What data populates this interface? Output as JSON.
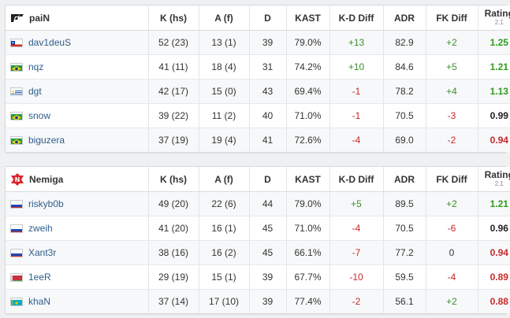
{
  "columns": {
    "kills": "K (hs)",
    "assists": "A (f)",
    "deaths": "D",
    "kast": "KAST",
    "kd_diff": "K-D Diff",
    "adr": "ADR",
    "fk_diff": "FK Diff",
    "rating": "Rating",
    "rating_version": "2.1"
  },
  "teams": [
    {
      "name": "paiN",
      "players": [
        {
          "name": "dav1deuS",
          "flag": "chile",
          "k": "52 (23)",
          "a": "13 (1)",
          "d": "39",
          "kast": "79.0%",
          "kd": "+13",
          "adr": "82.9",
          "fk": "+2",
          "rating": "1.25"
        },
        {
          "name": "nqz",
          "flag": "brazil",
          "k": "41 (11)",
          "a": "18 (4)",
          "d": "31",
          "kast": "74.2%",
          "kd": "+10",
          "adr": "84.6",
          "fk": "+5",
          "rating": "1.21"
        },
        {
          "name": "dgt",
          "flag": "uruguay",
          "k": "42 (17)",
          "a": "15 (0)",
          "d": "43",
          "kast": "69.4%",
          "kd": "-1",
          "adr": "78.2",
          "fk": "+4",
          "rating": "1.13"
        },
        {
          "name": "snow",
          "flag": "brazil",
          "k": "39 (22)",
          "a": "11 (2)",
          "d": "40",
          "kast": "71.0%",
          "kd": "-1",
          "adr": "70.5",
          "fk": "-3",
          "rating": "0.99"
        },
        {
          "name": "biguzera",
          "flag": "brazil",
          "k": "37 (19)",
          "a": "19 (4)",
          "d": "41",
          "kast": "72.6%",
          "kd": "-4",
          "adr": "69.0",
          "fk": "-2",
          "rating": "0.94"
        }
      ]
    },
    {
      "name": "Nemiga",
      "players": [
        {
          "name": "riskyb0b",
          "flag": "russia",
          "k": "49 (20)",
          "a": "22 (6)",
          "d": "44",
          "kast": "79.0%",
          "kd": "+5",
          "adr": "89.5",
          "fk": "+2",
          "rating": "1.21"
        },
        {
          "name": "zweih",
          "flag": "russia",
          "k": "41 (20)",
          "a": "16 (1)",
          "d": "45",
          "kast": "71.0%",
          "kd": "-4",
          "adr": "70.5",
          "fk": "-6",
          "rating": "0.96"
        },
        {
          "name": "Xant3r",
          "flag": "russia",
          "k": "38 (16)",
          "a": "16 (2)",
          "d": "45",
          "kast": "66.1%",
          "kd": "-7",
          "adr": "77.2",
          "fk": "0",
          "rating": "0.94"
        },
        {
          "name": "1eeR",
          "flag": "belarus",
          "k": "29 (19)",
          "a": "15 (1)",
          "d": "39",
          "kast": "67.7%",
          "kd": "-10",
          "adr": "59.5",
          "fk": "-4",
          "rating": "0.89"
        },
        {
          "name": "khaN",
          "flag": "kazakhstan",
          "k": "37 (14)",
          "a": "17 (10)",
          "d": "39",
          "kast": "77.4%",
          "kd": "-2",
          "adr": "56.1",
          "fk": "+2",
          "rating": "0.88"
        }
      ]
    }
  ],
  "colors": {
    "positive": "#2e9c1c",
    "negative": "#c6292b",
    "link": "#2f5d8c"
  }
}
